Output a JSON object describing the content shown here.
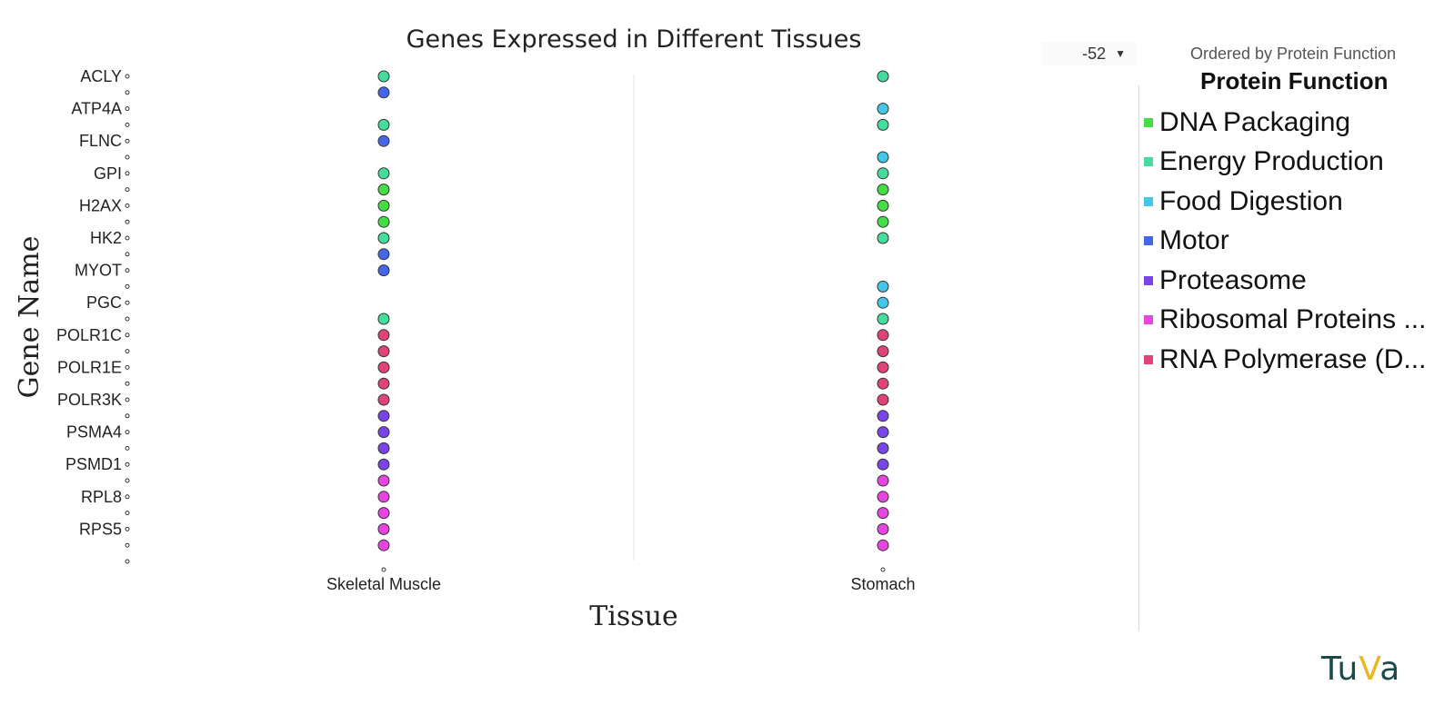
{
  "chart_data": {
    "type": "scatter",
    "title": "Genes Expressed in Different Tissues",
    "xlabel": "Tissue",
    "ylabel": "Gene Name",
    "categories": [
      "Skeletal Muscle",
      "Stomach"
    ],
    "ytick_labels": [
      "ACLY",
      "ATP4A",
      "FLNC",
      "GPI",
      "H2AX",
      "HK2",
      "MYOT",
      "PGC",
      "POLR1C",
      "POLR1E",
      "POLR3K",
      "PSMA4",
      "PSMD1",
      "RPL8",
      "RPS5"
    ],
    "legend_title": "Protein Function",
    "legend_position": "right",
    "grid": false,
    "series": [
      {
        "name": "DNA Packaging",
        "color": "#44dd44"
      },
      {
        "name": "Energy Production",
        "color": "#44dd9e"
      },
      {
        "name": "Food Digestion",
        "color": "#44c6e8"
      },
      {
        "name": "Motor",
        "color": "#4466e8"
      },
      {
        "name": "Proteasome",
        "color": "#7a44e8"
      },
      {
        "name": "Ribosomal Proteins ...",
        "color": "#e844e0"
      },
      {
        "name": "RNA Polymerase (D...",
        "color": "#e04476"
      }
    ],
    "points": {
      "Skeletal Muscle": [
        {
          "row": 1,
          "series": "Energy Production"
        },
        {
          "row": 2,
          "series": "Motor"
        },
        {
          "row": 4,
          "series": "Energy Production"
        },
        {
          "row": 5,
          "series": "Motor"
        },
        {
          "row": 7,
          "series": "Energy Production"
        },
        {
          "row": 8,
          "series": "DNA Packaging"
        },
        {
          "row": 9,
          "series": "DNA Packaging"
        },
        {
          "row": 10,
          "series": "DNA Packaging"
        },
        {
          "row": 11,
          "series": "Energy Production"
        },
        {
          "row": 12,
          "series": "Motor"
        },
        {
          "row": 13,
          "series": "Motor"
        },
        {
          "row": 16,
          "series": "Energy Production"
        },
        {
          "row": 17,
          "series": "RNA Polymerase (D..."
        },
        {
          "row": 18,
          "series": "RNA Polymerase (D..."
        },
        {
          "row": 19,
          "series": "RNA Polymerase (D..."
        },
        {
          "row": 20,
          "series": "RNA Polymerase (D..."
        },
        {
          "row": 21,
          "series": "RNA Polymerase (D..."
        },
        {
          "row": 22,
          "series": "Proteasome"
        },
        {
          "row": 23,
          "series": "Proteasome"
        },
        {
          "row": 24,
          "series": "Proteasome"
        },
        {
          "row": 25,
          "series": "Proteasome"
        },
        {
          "row": 26,
          "series": "Ribosomal Proteins ..."
        },
        {
          "row": 27,
          "series": "Ribosomal Proteins ..."
        },
        {
          "row": 28,
          "series": "Ribosomal Proteins ..."
        },
        {
          "row": 29,
          "series": "Ribosomal Proteins ..."
        },
        {
          "row": 30,
          "series": "Ribosomal Proteins ..."
        }
      ],
      "Stomach": [
        {
          "row": 1,
          "series": "Energy Production"
        },
        {
          "row": 3,
          "series": "Food Digestion"
        },
        {
          "row": 4,
          "series": "Energy Production"
        },
        {
          "row": 6,
          "series": "Food Digestion"
        },
        {
          "row": 7,
          "series": "Energy Production"
        },
        {
          "row": 8,
          "series": "DNA Packaging"
        },
        {
          "row": 9,
          "series": "DNA Packaging"
        },
        {
          "row": 10,
          "series": "DNA Packaging"
        },
        {
          "row": 11,
          "series": "Energy Production"
        },
        {
          "row": 14,
          "series": "Food Digestion"
        },
        {
          "row": 15,
          "series": "Food Digestion"
        },
        {
          "row": 16,
          "series": "Energy Production"
        },
        {
          "row": 17,
          "series": "RNA Polymerase (D..."
        },
        {
          "row": 18,
          "series": "RNA Polymerase (D..."
        },
        {
          "row": 19,
          "series": "RNA Polymerase (D..."
        },
        {
          "row": 20,
          "series": "RNA Polymerase (D..."
        },
        {
          "row": 21,
          "series": "RNA Polymerase (D..."
        },
        {
          "row": 22,
          "series": "Proteasome"
        },
        {
          "row": 23,
          "series": "Proteasome"
        },
        {
          "row": 24,
          "series": "Proteasome"
        },
        {
          "row": 25,
          "series": "Proteasome"
        },
        {
          "row": 26,
          "series": "Ribosomal Proteins ..."
        },
        {
          "row": 27,
          "series": "Ribosomal Proteins ..."
        },
        {
          "row": 28,
          "series": "Ribosomal Proteins ..."
        },
        {
          "row": 29,
          "series": "Ribosomal Proteins ..."
        },
        {
          "row": 30,
          "series": "Ribosomal Proteins ..."
        }
      ]
    }
  },
  "controls": {
    "filter_value": "-52",
    "filter_icon": "funnel-icon",
    "order_note": "Ordered by Protein Function"
  },
  "branding": {
    "logo_text_a": "Tu",
    "logo_text_b": "V",
    "logo_text_c": "a"
  }
}
